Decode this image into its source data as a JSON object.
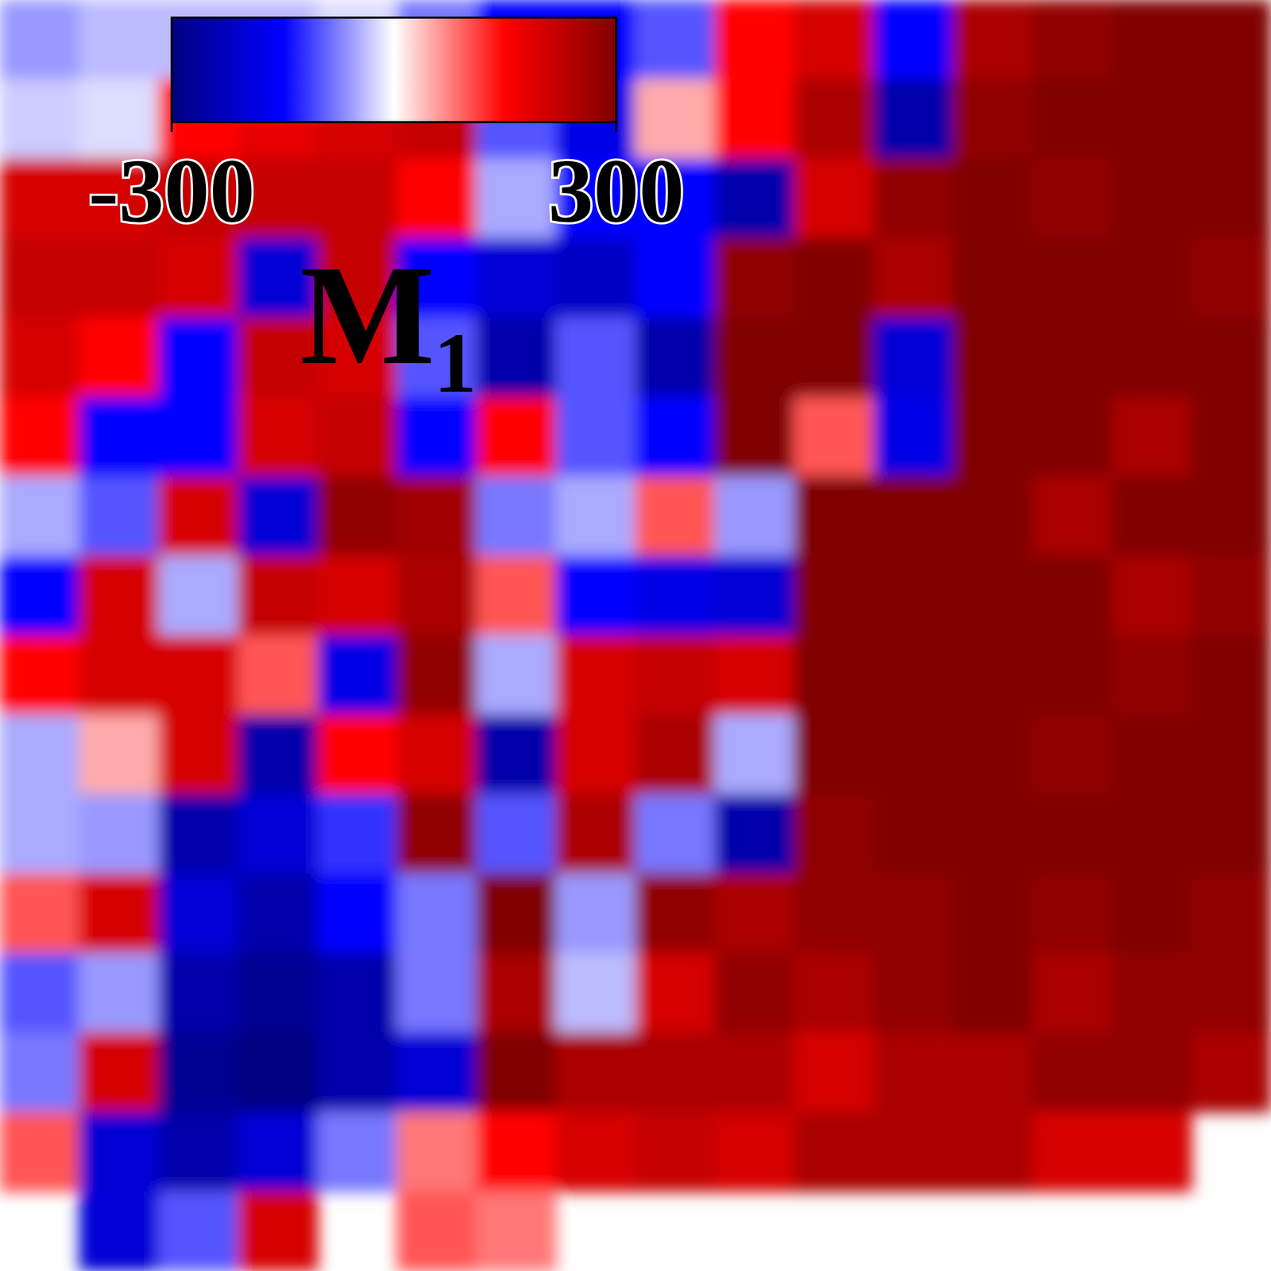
{
  "chart_data": {
    "type": "heatmap",
    "title": "M₁",
    "tick_labels": false,
    "colorbar_range": [
      -300,
      300
    ],
    "colorbar_ticks": [
      -300,
      300
    ],
    "cells": [
      [
        -60,
        -40,
        -40,
        -40,
        -20,
        -80,
        -150,
        -150,
        -100,
        150,
        200,
        -150,
        250,
        280,
        300,
        300
      ],
      [
        -30,
        -20,
        150,
        180,
        200,
        220,
        -100,
        -180,
        50,
        150,
        250,
        -250,
        280,
        300,
        300,
        300
      ],
      [
        200,
        200,
        220,
        220,
        220,
        150,
        -50,
        -150,
        -150,
        -250,
        200,
        280,
        300,
        280,
        300,
        300
      ],
      [
        220,
        220,
        200,
        -200,
        220,
        -150,
        -200,
        -220,
        -150,
        280,
        300,
        250,
        300,
        300,
        300,
        280
      ],
      [
        200,
        150,
        -150,
        220,
        200,
        -100,
        -250,
        -100,
        -250,
        300,
        300,
        -200,
        300,
        300,
        300,
        300
      ],
      [
        150,
        -150,
        -150,
        200,
        220,
        -150,
        150,
        -100,
        -150,
        300,
        100,
        -180,
        300,
        300,
        250,
        300
      ],
      [
        -50,
        -100,
        200,
        -200,
        280,
        260,
        -80,
        -50,
        100,
        -60,
        300,
        300,
        300,
        250,
        300,
        300
      ],
      [
        -150,
        200,
        -50,
        220,
        200,
        250,
        100,
        -150,
        -180,
        -200,
        300,
        300,
        300,
        300,
        250,
        280
      ],
      [
        150,
        200,
        200,
        100,
        -180,
        280,
        -50,
        200,
        220,
        200,
        300,
        300,
        300,
        300,
        280,
        300
      ],
      [
        -50,
        50,
        200,
        -250,
        150,
        200,
        -250,
        200,
        250,
        -50,
        300,
        300,
        300,
        280,
        300,
        300
      ],
      [
        -50,
        -60,
        -250,
        -200,
        -120,
        280,
        -100,
        250,
        -80,
        -250,
        280,
        300,
        300,
        300,
        300,
        300
      ],
      [
        100,
        200,
        -200,
        -250,
        -150,
        -80,
        300,
        -60,
        280,
        250,
        280,
        280,
        300,
        280,
        300,
        280
      ],
      [
        -100,
        -60,
        -250,
        -280,
        -250,
        -80,
        250,
        -40,
        200,
        280,
        250,
        280,
        300,
        250,
        280,
        280
      ],
      [
        -80,
        200,
        -280,
        -300,
        -250,
        -200,
        300,
        250,
        250,
        250,
        200,
        250,
        250,
        280,
        280,
        250
      ],
      [
        100,
        -200,
        -250,
        -200,
        -80,
        80,
        150,
        200,
        220,
        200,
        250,
        250,
        250,
        200,
        200,
        null
      ],
      [
        null,
        -200,
        -100,
        200,
        null,
        100,
        80,
        null,
        null,
        null,
        null,
        null,
        null,
        null,
        null,
        null
      ]
    ]
  }
}
